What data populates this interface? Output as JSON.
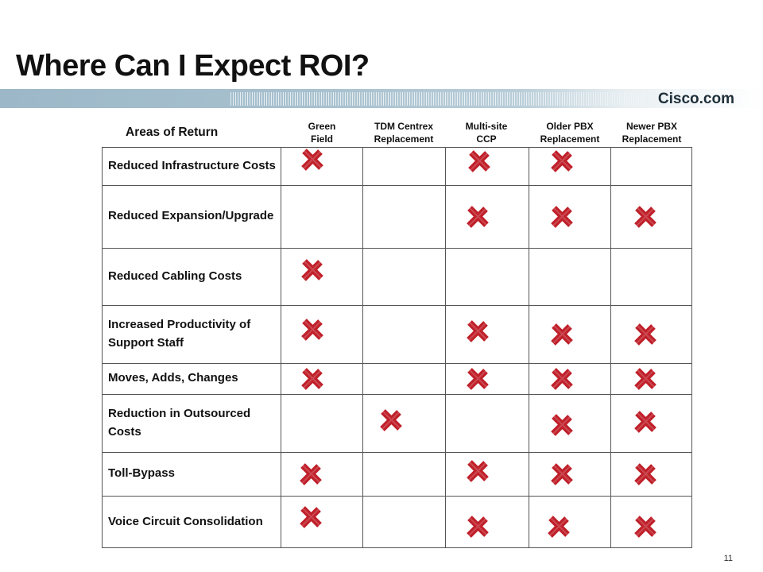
{
  "slide": {
    "title": "Where Can I Expect ROI?",
    "brand": "Cisco.com",
    "page_number": "11"
  },
  "colors": {
    "mark": "#c0202a",
    "banner": "#9cb8c8",
    "grid": "#555555"
  },
  "table": {
    "areas_heading": "Areas of Return",
    "columns": [
      {
        "line1": "Green",
        "line2": "Field"
      },
      {
        "line1": "TDM Centrex",
        "line2": "Replacement"
      },
      {
        "line1": "Multi-site",
        "line2": "CCP"
      },
      {
        "line1": "Older PBX",
        "line2": "Replacement"
      },
      {
        "line1": "Newer PBX",
        "line2": "Replacement"
      }
    ],
    "rows": [
      {
        "label": "Reduced Infrastructure Costs",
        "marks": [
          true,
          false,
          true,
          true,
          false
        ]
      },
      {
        "label": "Reduced Expansion/Upgrade",
        "marks": [
          false,
          false,
          true,
          true,
          true
        ]
      },
      {
        "label": "Reduced Cabling Costs",
        "marks": [
          true,
          false,
          false,
          false,
          false
        ]
      },
      {
        "label": "Increased Productivity of Support Staff",
        "marks": [
          true,
          false,
          true,
          true,
          true
        ]
      },
      {
        "label": "Moves, Adds, Changes",
        "marks": [
          true,
          false,
          true,
          true,
          true
        ]
      },
      {
        "label": "Reduction in Outsourced Costs",
        "marks": [
          false,
          true,
          false,
          true,
          true
        ]
      },
      {
        "label": "Toll-Bypass",
        "marks": [
          true,
          false,
          true,
          true,
          true
        ]
      },
      {
        "label": "Voice Circuit Consolidation",
        "marks": [
          true,
          false,
          true,
          true,
          true
        ]
      }
    ],
    "mark_icon": "x-mark-icon"
  }
}
